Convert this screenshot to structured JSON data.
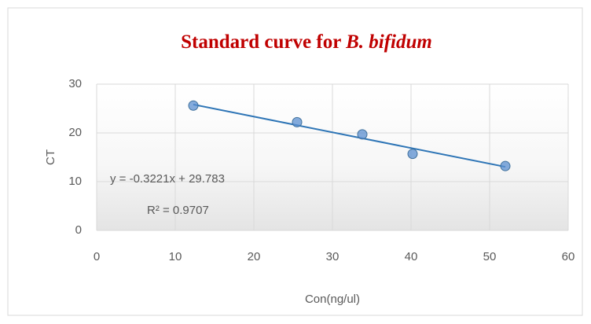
{
  "chart_data": {
    "type": "scatter",
    "title": "Standard  curve  for",
    "title_species": "B. bifidum",
    "x_label": "Con(ng/ul)",
    "y_label": "CT",
    "series": [
      {
        "name": "CT",
        "color": "#5b8fd0",
        "x": [
          12.3,
          25.5,
          33.8,
          40.2,
          52
        ],
        "values": [
          25.6,
          22.2,
          19.7,
          15.7,
          13.2
        ]
      }
    ],
    "trendline": {
      "slope": -0.3221,
      "intercept": 29.783,
      "color": "#2e75b6",
      "label": "y = -0.3221x + 29.783",
      "r2": 0.9707,
      "r2_label": "R² = 0.9707"
    },
    "xlim": [
      0,
      60
    ],
    "xticks": [
      0,
      10,
      20,
      30,
      40,
      50,
      60
    ],
    "ylim": [
      0,
      30
    ],
    "yticks": [
      0,
      10,
      20,
      30
    ],
    "grid": true
  }
}
